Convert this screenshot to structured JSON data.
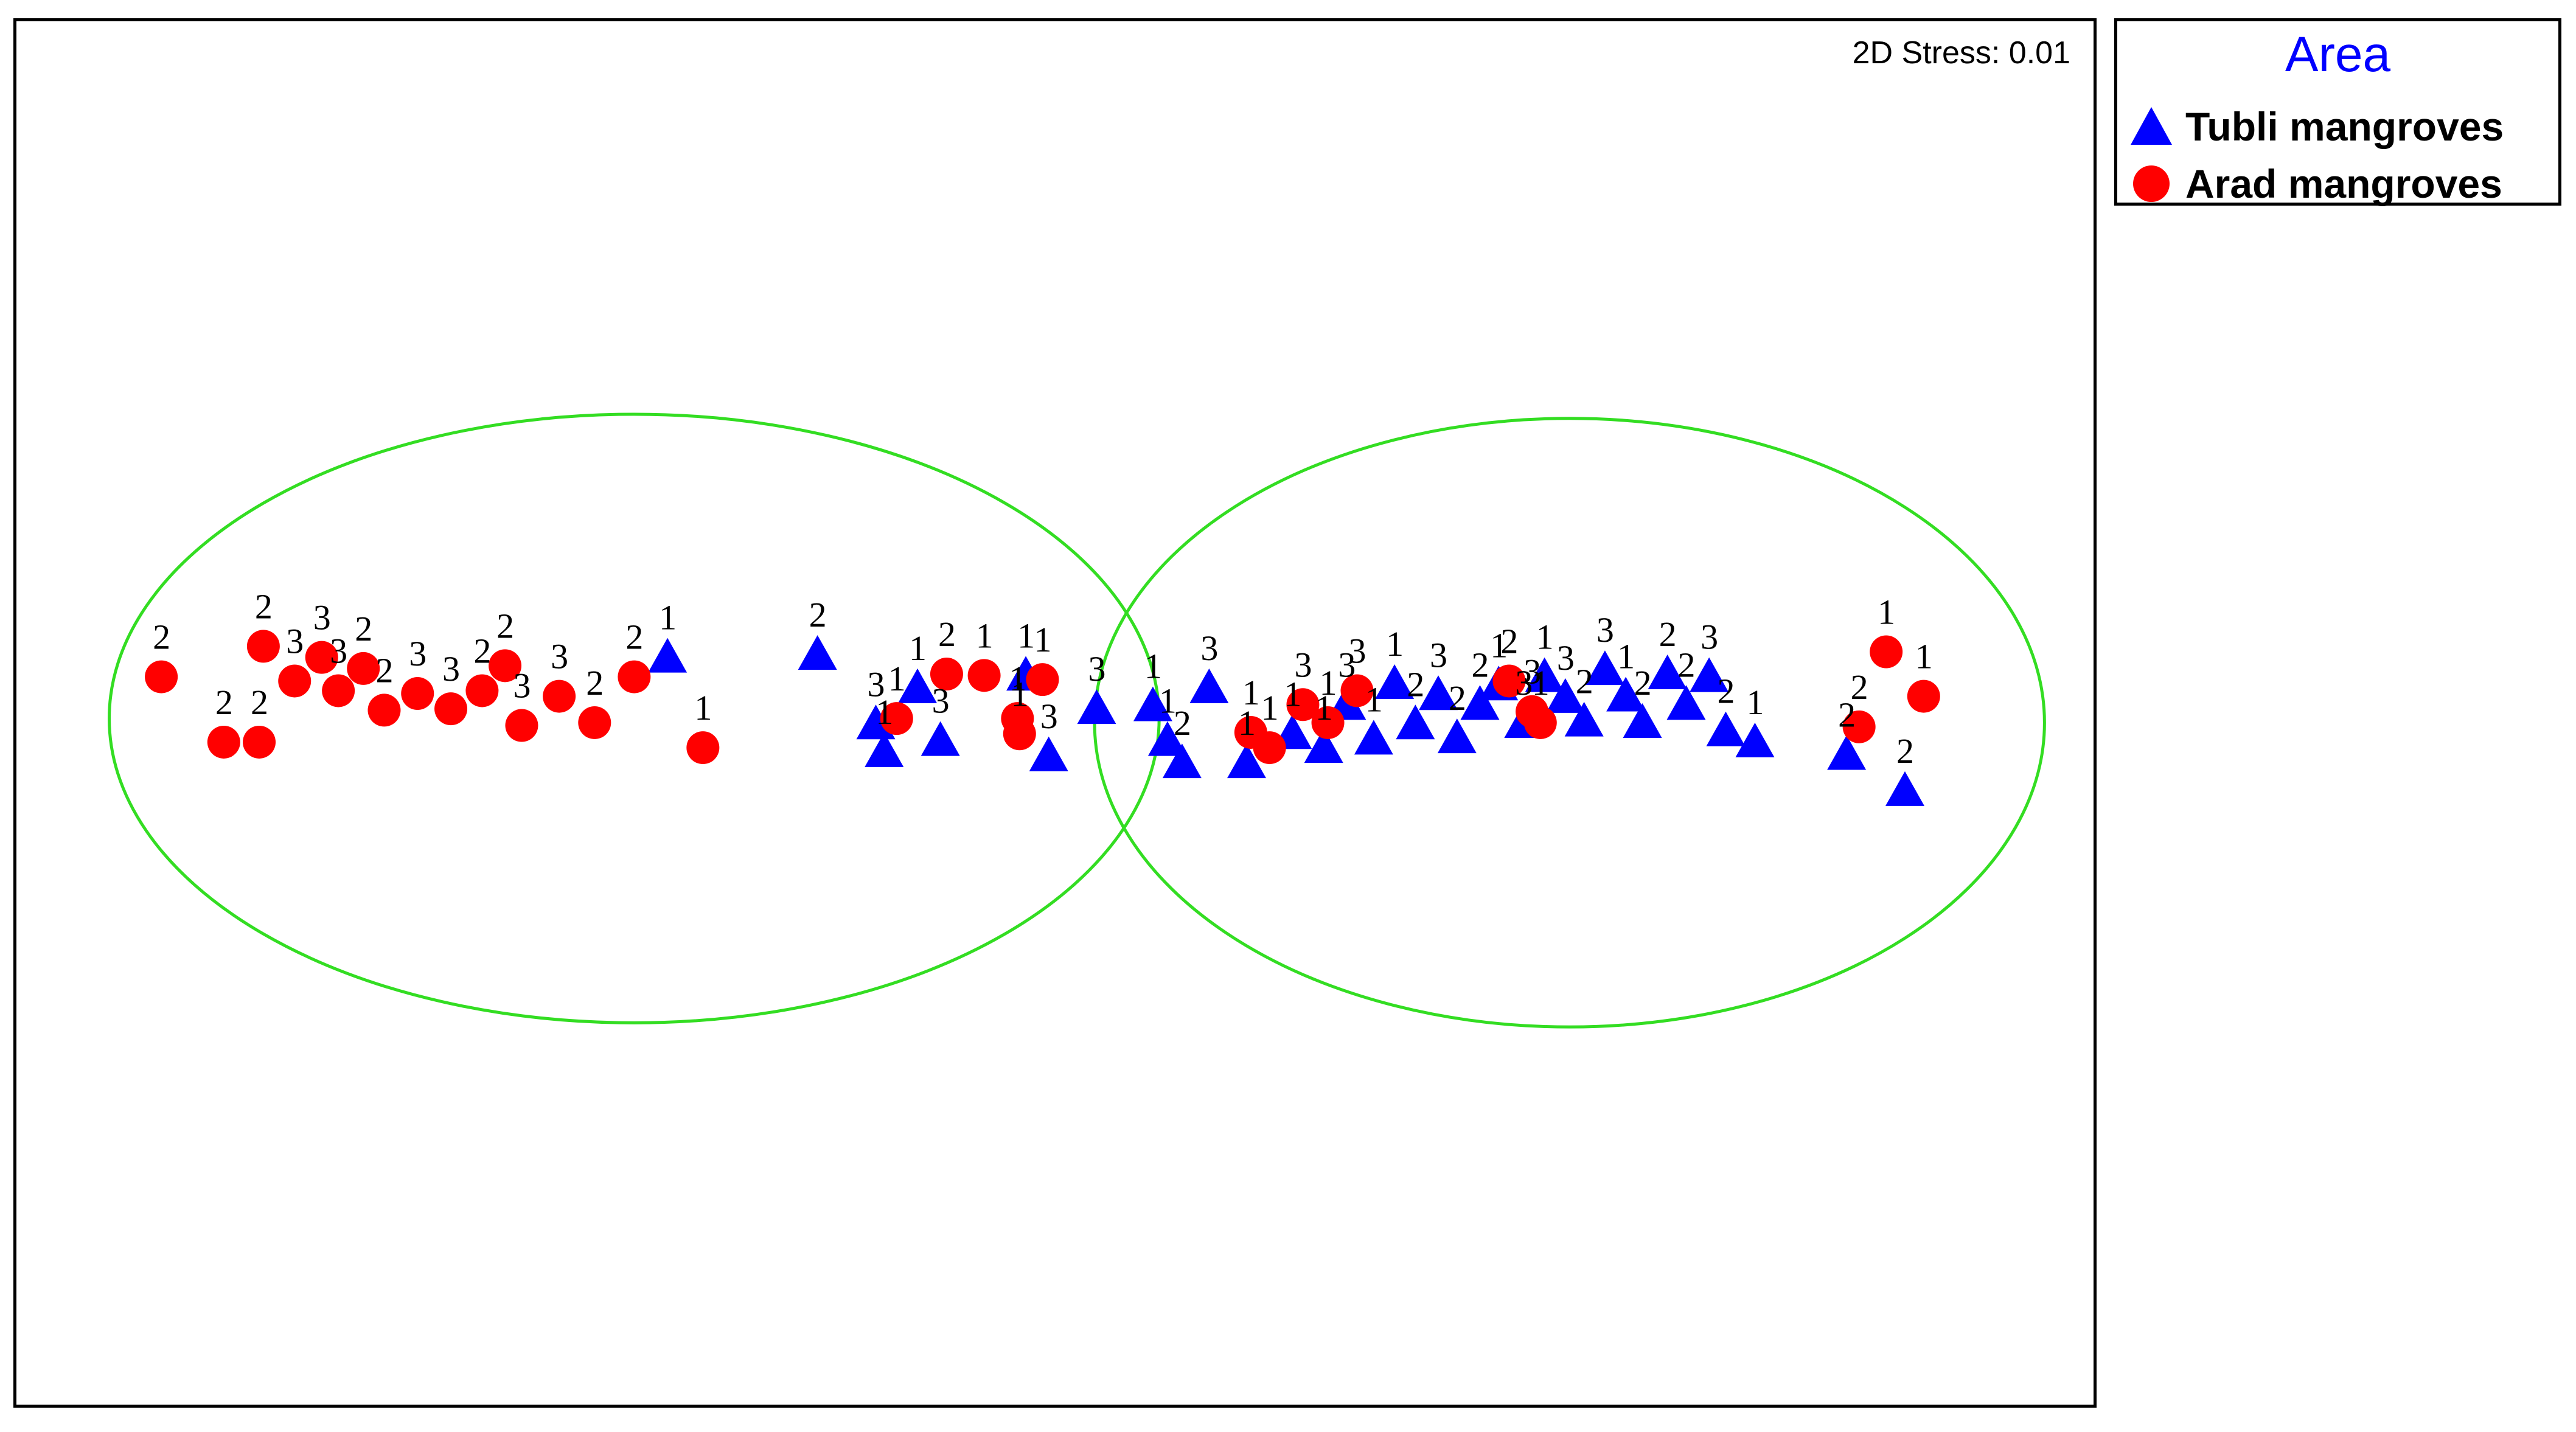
{
  "chart_data": {
    "type": "scatter",
    "title": "",
    "xlabel": "",
    "ylabel": "",
    "grid": false,
    "axes_visible": false,
    "xlim": [
      0,
      100
    ],
    "ylim": [
      0,
      100
    ],
    "stress_text": "2D Stress: 0.01",
    "legend": {
      "title": "Area",
      "placement": "right-top"
    },
    "colors": {
      "tubli": "#0000ff",
      "arad": "#ff0000",
      "ellipse": "#33dd22",
      "legend_title": "#0000ff"
    },
    "ellipses": [
      {
        "cx": 29.8,
        "cy": 49.6,
        "rx": 25.2,
        "ry": 21.9
      },
      {
        "cx": 74.7,
        "cy": 49.3,
        "rx": 22.8,
        "ry": 21.9
      }
    ],
    "series": [
      {
        "name": "Tubli mangroves",
        "marker": "triangle",
        "points": [
          {
            "x": 31.4,
            "y": 54.0,
            "label": "1"
          },
          {
            "x": 38.6,
            "y": 54.2,
            "label": "2"
          },
          {
            "x": 41.4,
            "y": 49.2,
            "label": "3"
          },
          {
            "x": 41.8,
            "y": 47.2,
            "label": "1"
          },
          {
            "x": 43.4,
            "y": 51.8,
            "label": "1"
          },
          {
            "x": 44.5,
            "y": 48.0,
            "label": "3"
          },
          {
            "x": 48.6,
            "y": 52.7,
            "label": "1"
          },
          {
            "x": 49.7,
            "y": 46.9,
            "label": "3"
          },
          {
            "x": 52.0,
            "y": 50.3,
            "label": "3"
          },
          {
            "x": 54.7,
            "y": 50.5,
            "label": "1"
          },
          {
            "x": 55.4,
            "y": 48.0,
            "label": "1"
          },
          {
            "x": 56.1,
            "y": 46.4,
            "label": "2"
          },
          {
            "x": 57.4,
            "y": 51.8,
            "label": "3"
          },
          {
            "x": 59.2,
            "y": 46.4,
            "label": "1"
          },
          {
            "x": 61.4,
            "y": 48.5,
            "label": "1"
          },
          {
            "x": 62.9,
            "y": 47.5,
            "label": "1"
          },
          {
            "x": 64.0,
            "y": 50.6,
            "label": "3"
          },
          {
            "x": 65.3,
            "y": 48.1,
            "label": "1"
          },
          {
            "x": 66.3,
            "y": 52.1,
            "label": "1"
          },
          {
            "x": 67.3,
            "y": 49.2,
            "label": "2"
          },
          {
            "x": 68.4,
            "y": 51.3,
            "label": "3"
          },
          {
            "x": 69.3,
            "y": 48.2,
            "label": "2"
          },
          {
            "x": 70.4,
            "y": 50.6,
            "label": "2"
          },
          {
            "x": 71.3,
            "y": 52.0,
            "label": "1"
          },
          {
            "x": 72.5,
            "y": 49.3,
            "label": "3"
          },
          {
            "x": 73.5,
            "y": 52.6,
            "label": "1"
          },
          {
            "x": 74.5,
            "y": 51.1,
            "label": "3"
          },
          {
            "x": 75.4,
            "y": 49.4,
            "label": "2"
          },
          {
            "x": 76.4,
            "y": 53.1,
            "label": "3"
          },
          {
            "x": 77.4,
            "y": 51.2,
            "label": "1"
          },
          {
            "x": 78.2,
            "y": 49.3,
            "label": "2"
          },
          {
            "x": 79.4,
            "y": 52.8,
            "label": "2"
          },
          {
            "x": 80.3,
            "y": 50.6,
            "label": "2"
          },
          {
            "x": 81.4,
            "y": 52.6,
            "label": "3"
          },
          {
            "x": 82.2,
            "y": 48.7,
            "label": "2"
          },
          {
            "x": 83.6,
            "y": 47.9,
            "label": "1"
          },
          {
            "x": 88.0,
            "y": 47.0,
            "label": "2"
          },
          {
            "x": 90.8,
            "y": 44.4,
            "label": "2"
          }
        ]
      },
      {
        "name": "Arad mangroves",
        "marker": "circle",
        "points": [
          {
            "x": 7.1,
            "y": 52.6,
            "label": "2"
          },
          {
            "x": 10.1,
            "y": 47.9,
            "label": "2"
          },
          {
            "x": 11.8,
            "y": 47.9,
            "label": "2"
          },
          {
            "x": 12.0,
            "y": 54.8,
            "label": "2"
          },
          {
            "x": 13.5,
            "y": 52.3,
            "label": "3"
          },
          {
            "x": 14.8,
            "y": 54.0,
            "label": "3"
          },
          {
            "x": 15.6,
            "y": 51.6,
            "label": "3"
          },
          {
            "x": 16.8,
            "y": 53.2,
            "label": "2"
          },
          {
            "x": 17.8,
            "y": 50.2,
            "label": "2"
          },
          {
            "x": 19.4,
            "y": 51.4,
            "label": "3"
          },
          {
            "x": 21.0,
            "y": 50.3,
            "label": "3"
          },
          {
            "x": 22.5,
            "y": 51.6,
            "label": "2"
          },
          {
            "x": 23.6,
            "y": 53.4,
            "label": "2"
          },
          {
            "x": 24.4,
            "y": 49.1,
            "label": "3"
          },
          {
            "x": 26.2,
            "y": 51.2,
            "label": "3"
          },
          {
            "x": 27.9,
            "y": 49.3,
            "label": "2"
          },
          {
            "x": 29.8,
            "y": 52.6,
            "label": "2"
          },
          {
            "x": 33.1,
            "y": 47.5,
            "label": "1"
          },
          {
            "x": 42.4,
            "y": 49.6,
            "label": "1"
          },
          {
            "x": 44.8,
            "y": 52.8,
            "label": "2"
          },
          {
            "x": 46.6,
            "y": 52.7,
            "label": "1"
          },
          {
            "x": 48.2,
            "y": 49.6,
            "label": "1"
          },
          {
            "x": 48.3,
            "y": 48.5,
            "label": "1"
          },
          {
            "x": 49.4,
            "y": 52.4,
            "label": "1"
          },
          {
            "x": 59.4,
            "y": 48.6,
            "label": "1"
          },
          {
            "x": 60.3,
            "y": 47.5,
            "label": "1"
          },
          {
            "x": 61.9,
            "y": 50.6,
            "label": "3"
          },
          {
            "x": 63.1,
            "y": 49.3,
            "label": "1"
          },
          {
            "x": 64.5,
            "y": 51.6,
            "label": "3"
          },
          {
            "x": 71.8,
            "y": 52.3,
            "label": "2"
          },
          {
            "x": 72.9,
            "y": 50.1,
            "label": "3"
          },
          {
            "x": 73.3,
            "y": 49.3,
            "label": "1"
          },
          {
            "x": 88.6,
            "y": 49.0,
            "label": "2"
          },
          {
            "x": 89.9,
            "y": 54.4,
            "label": "1"
          },
          {
            "x": 91.7,
            "y": 51.2,
            "label": "1"
          }
        ]
      }
    ]
  }
}
